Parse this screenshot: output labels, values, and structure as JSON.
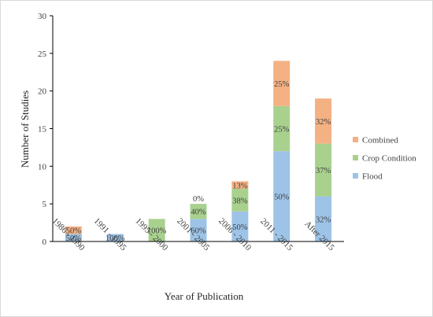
{
  "chart_data": {
    "type": "bar",
    "stacked": true,
    "xlabel": "Year of Publication",
    "ylabel": "Number of Studies",
    "ylim": [
      0,
      30
    ],
    "yticks": [
      "0",
      "5",
      "10",
      "15",
      "20",
      "25",
      "30"
    ],
    "grid": false,
    "legend_position": "right",
    "categories": [
      "1986 - 1990",
      "1991 - 1995",
      "1995 - 2000",
      "2001 - 2005",
      "2006 - 2010",
      "2011 - 2015",
      "After 2015"
    ],
    "series": [
      {
        "name": "Flood",
        "color": "#9dc3e6",
        "values": [
          1,
          1,
          0,
          3,
          4,
          12,
          6
        ],
        "labels": [
          "50%",
          "100%",
          "",
          "60%",
          "50%",
          "50%",
          "32%"
        ]
      },
      {
        "name": "Crop Condition",
        "color": "#a9d18e",
        "values": [
          0,
          0,
          3,
          2,
          3,
          6,
          7
        ],
        "labels": [
          "",
          "",
          "100%",
          "40%",
          "38%",
          "25%",
          "37%"
        ]
      },
      {
        "name": "Combined",
        "color": "#f4b183",
        "values": [
          1,
          0,
          0,
          0,
          1,
          6,
          6
        ],
        "labels": [
          "50%",
          "",
          "",
          "0%",
          "13%",
          "25%",
          "32%"
        ]
      }
    ],
    "legend_order": [
      "Combined",
      "Crop Condition",
      "Flood"
    ]
  }
}
